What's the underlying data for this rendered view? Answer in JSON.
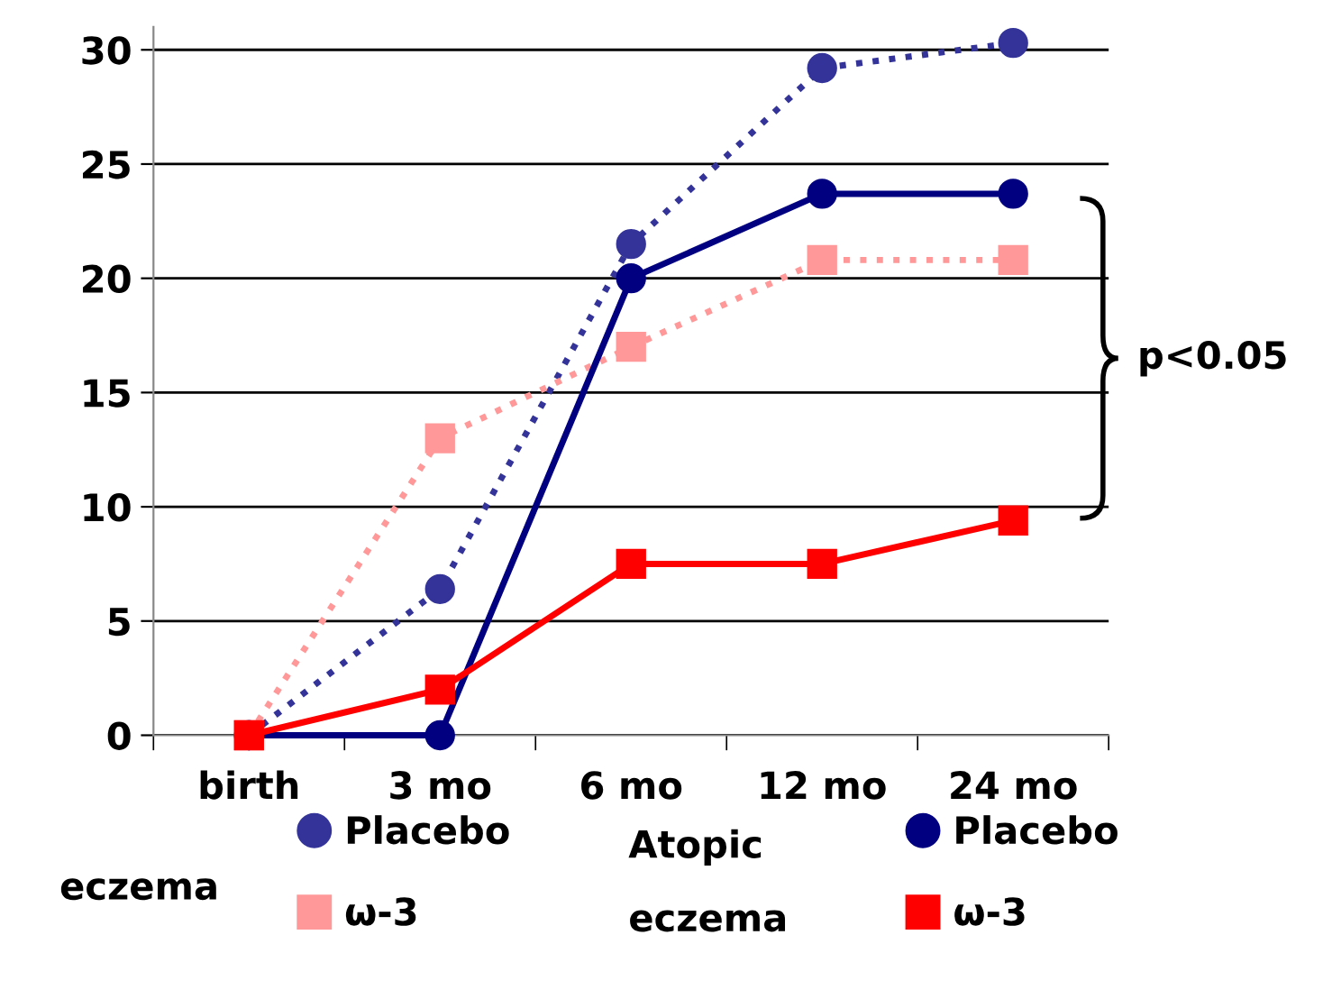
{
  "chart_data": {
    "type": "line",
    "categories": [
      "birth",
      "3 mo",
      "6 mo",
      "12 mo",
      "24 mo"
    ],
    "series": [
      {
        "name": "Placebo",
        "color": "#333399",
        "values": [
          0,
          6.4,
          21.5,
          29.2,
          30.3
        ],
        "marker": "circle",
        "line_style": "dotted"
      },
      {
        "name": "ω-3",
        "color": "#ff9999",
        "values": [
          0,
          13,
          17,
          20.8,
          20.8
        ],
        "marker": "square",
        "line_style": "dotted"
      },
      {
        "name": "Placebo",
        "color": "#000080",
        "values": [
          0,
          0,
          20,
          23.7,
          23.7
        ],
        "marker": "circle",
        "line_style": "solid"
      },
      {
        "name": "ω-3",
        "color": "#ff0000",
        "values": [
          0,
          2,
          7.5,
          7.5,
          9.4
        ],
        "marker": "square",
        "line_style": "solid"
      }
    ],
    "ylim": [
      0,
      31
    ],
    "yticks": [
      0,
      5,
      10,
      15,
      20,
      25,
      30
    ],
    "grid": "y",
    "legend": "bottom",
    "annotations": [
      "p<0.05",
      "eczema",
      "Atopic\neczema"
    ]
  }
}
